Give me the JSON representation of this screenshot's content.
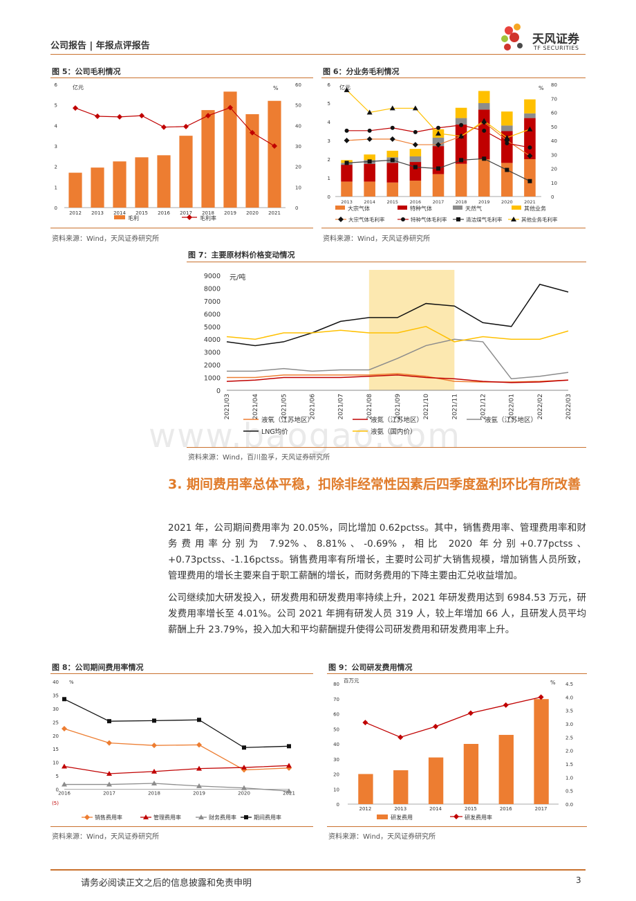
{
  "header": {
    "section": "公司报告 | 年报点评报告",
    "brand_cn": "天风证券",
    "brand_en": "TF SECURITIES"
  },
  "watermark": "www.baogao.com",
  "fig5": {
    "title": "图 5：公司毛利情况",
    "source": "资料来源：Wind，天风证券研究所",
    "ylabel_left": "亿元",
    "ylabel_right": "%",
    "legend": [
      "毛利",
      "毛利率"
    ],
    "chart_data": {
      "type": "bar",
      "categories": [
        "2012",
        "2013",
        "2014",
        "2015",
        "2016",
        "2017",
        "2018",
        "2019",
        "2020",
        "2021"
      ],
      "series": [
        {
          "name": "毛利",
          "values": [
            1.7,
            1.95,
            2.25,
            2.45,
            2.55,
            3.5,
            4.75,
            5.65,
            4.55,
            5.2
          ]
        },
        {
          "name": "毛利率",
          "values": [
            48.5,
            44.5,
            44.2,
            44.8,
            39.2,
            39.5,
            44.8,
            48.7,
            36.5,
            30.0
          ]
        }
      ],
      "ylim": [
        0,
        6
      ],
      "y2lim": [
        0,
        60
      ],
      "yticks": [
        "0",
        "1",
        "2",
        "3",
        "4",
        "5",
        "6"
      ],
      "y2ticks": [
        "0",
        "10",
        "20",
        "30",
        "40",
        "50",
        "60"
      ]
    }
  },
  "fig6": {
    "title": "图 6：分业务毛利情况",
    "source": "资料来源：Wind，天风证券研究所",
    "ylabel_left": "亿元",
    "ylabel_right": "%",
    "legend": [
      "大宗气体",
      "特种气体",
      "天然气",
      "其他业务",
      "大宗气体毛利率",
      "特种气体毛利率",
      "清洁煤气毛利率",
      "其他业务毛利率"
    ],
    "chart_data": {
      "type": "bar",
      "categories": [
        "2013",
        "2014",
        "2015",
        "2016",
        "2017",
        "2018",
        "2019",
        "2020",
        "2021"
      ],
      "series": [
        {
          "name": "大宗气体",
          "values": [
            0.8,
            0.8,
            0.75,
            0.85,
            1.2,
            1.75,
            2.0,
            1.8,
            2.0
          ]
        },
        {
          "name": "特种气体",
          "values": [
            0.9,
            0.95,
            1.05,
            1.0,
            1.5,
            2.1,
            2.65,
            1.7,
            2.2
          ]
        },
        {
          "name": "天然气",
          "values": [
            0.1,
            0.2,
            0.3,
            0.3,
            0.45,
            0.35,
            0.35,
            0.3,
            0.25
          ]
        },
        {
          "name": "其他业务",
          "values": [
            0.15,
            0.3,
            0.35,
            0.4,
            0.45,
            0.55,
            0.65,
            0.75,
            0.75
          ]
        },
        {
          "name": "大宗气体毛利率",
          "values": [
            40,
            41,
            41,
            37,
            37,
            43,
            53,
            40,
            29
          ]
        },
        {
          "name": "特种气体毛利率",
          "values": [
            47,
            47,
            49,
            46,
            49,
            51,
            47,
            38,
            35
          ]
        },
        {
          "name": "清洁煤气毛利率",
          "values": [
            24,
            25,
            26,
            21,
            20,
            26,
            27,
            19,
            11
          ]
        },
        {
          "name": "其他业务毛利率",
          "values": [
            76,
            60,
            63,
            63,
            45,
            43,
            54,
            42,
            48
          ]
        }
      ],
      "ylim": [
        0,
        6
      ],
      "y2lim": [
        0,
        80
      ],
      "yticks": [
        "0",
        "1",
        "2",
        "3",
        "4",
        "5",
        "6"
      ],
      "y2ticks": [
        "0",
        "10",
        "20",
        "30",
        "40",
        "50",
        "60",
        "70",
        "80"
      ]
    }
  },
  "fig7": {
    "title": "图 7：主要原材料价格变动情况",
    "source": "资料来源：Wind，百川盈孚，天风证券研究所",
    "ylabel": "元/吨",
    "legend": [
      "液氧（江苏地区）",
      "液氮（江苏地区）",
      "液氩（江苏地区）",
      "LNG均价",
      "液氨（国内价）"
    ],
    "chart_data": {
      "type": "line",
      "x": [
        "2021/03",
        "2021/04",
        "2021/05",
        "2021/06",
        "2021/07",
        "2021/08",
        "2021/09",
        "2021/10",
        "2021/11",
        "2021/12",
        "2022/01",
        "2022/02",
        "2022/03"
      ],
      "series": [
        {
          "name": "液氧（江苏地区）",
          "values": [
            1000,
            1000,
            1200,
            1200,
            1200,
            1200,
            1300,
            1100,
            700,
            650,
            650,
            700,
            800
          ]
        },
        {
          "name": "液氮（江苏地区）",
          "values": [
            700,
            800,
            1000,
            1000,
            1000,
            1100,
            1200,
            1000,
            900,
            700,
            600,
            650,
            800
          ]
        },
        {
          "name": "液氩（江苏地区）",
          "values": [
            1500,
            1500,
            1700,
            1500,
            1600,
            1600,
            2500,
            3500,
            4000,
            3800,
            900,
            1100,
            1400
          ]
        },
        {
          "name": "LNG均价",
          "values": [
            3800,
            3500,
            3800,
            4500,
            5400,
            5700,
            5700,
            6800,
            6600,
            5300,
            5000,
            8300,
            7700
          ]
        },
        {
          "name": "液氨（国内价）",
          "values": [
            4200,
            4000,
            4500,
            4500,
            4700,
            4500,
            4500,
            5000,
            3800,
            4200,
            4000,
            4000,
            4650
          ]
        }
      ],
      "ylim": [
        0,
        9000
      ],
      "yticks": [
        "0",
        "1000",
        "2000",
        "3000",
        "4000",
        "5000",
        "6000",
        "7000",
        "8000",
        "9000"
      ],
      "highlight": [
        "2021/08",
        "2021/11"
      ]
    }
  },
  "section3": {
    "title": "3. 期间费用率总体平稳，扣除非经常性因素后四季度盈利环比有所改善"
  },
  "paragraphs": [
    "2021 年，公司期间费用率为 20.05%，同比增加 0.62pctss。其中，销售费用率、管理费用率和财务费用率分别为 7.92%、8.81%、-0.69%，相比 2020 年分别+0.77pctss、+0.73pctss、-1.16pctss。销售费用率有所增长，主要时公司扩大销售规模，增加销售人员所致，管理费用的增长主要来自于职工薪酬的增长，而财务费用的下降主要由汇兑收益增加。",
    "公司继续加大研发投入，研发费用和研发费用率持续上升，2021 年研发费用达到 6984.53 万元，研发费用率增长至 4.01%。公司 2021 年拥有研发人员 319 人，较上年增加 66 人，且研发人员平均薪酬上升 23.79%，投入加大和平均薪酬提升使得公司研发费用和研发费用率上升。"
  ],
  "fig8": {
    "title": "图 8：公司期间费用率情况",
    "source": "资料来源：Wind，天风证券研究所",
    "ylabel": "%",
    "legend": [
      "销售费用率",
      "管理费用率",
      "财务费用率",
      "期间费用率"
    ],
    "chart_data": {
      "type": "line",
      "x": [
        "2016",
        "2017",
        "2018",
        "2019",
        "2020",
        "2021"
      ],
      "series": [
        {
          "name": "销售费用率",
          "values": [
            22.5,
            17.2,
            16.3,
            16.5,
            7.2,
            7.9
          ]
        },
        {
          "name": "管理费用率",
          "values": [
            8.5,
            5.8,
            6.6,
            7.7,
            8.1,
            8.8
          ]
        },
        {
          "name": "财务费用率",
          "values": [
            1.8,
            1.8,
            2.2,
            1.2,
            0.5,
            -0.7
          ]
        },
        {
          "name": "期间费用率",
          "values": [
            33.5,
            25.3,
            25.5,
            25.8,
            15.5,
            16.0
          ]
        }
      ],
      "ylim": [
        -5,
        40
      ],
      "yticks": [
        "(5)",
        "0",
        "5",
        "10",
        "15",
        "20",
        "25",
        "30",
        "35",
        "40"
      ]
    }
  },
  "fig9": {
    "title": "图 9：公司研发费用情况",
    "source": "资料来源：Wind，天风证券研究所",
    "ylabel_left": "百万元",
    "ylabel_right": "%",
    "legend": [
      "研发费用",
      "研发费用率"
    ],
    "chart_data": {
      "type": "bar",
      "categories": [
        "2012",
        "2013",
        "2014",
        "2015",
        "2016",
        "2017"
      ],
      "series": [
        {
          "name": "研发费用",
          "values": [
            20,
            22.5,
            31,
            40,
            46,
            69.8
          ]
        },
        {
          "name": "研发费用率",
          "values": [
            3.05,
            2.5,
            2.9,
            3.4,
            3.7,
            4.0
          ]
        }
      ],
      "ylim": [
        0,
        80
      ],
      "y2lim": [
        0,
        4.5
      ],
      "yticks": [
        "0",
        "10",
        "20",
        "30",
        "40",
        "50",
        "60",
        "70",
        "80"
      ],
      "y2ticks": [
        "0.0",
        "0.5",
        "1.0",
        "1.5",
        "2.0",
        "2.5",
        "3.0",
        "3.5",
        "4.0",
        "4.5"
      ]
    }
  },
  "footer": {
    "disclaimer": "请务必阅读正文之后的信息披露和免责申明",
    "page": "3"
  }
}
